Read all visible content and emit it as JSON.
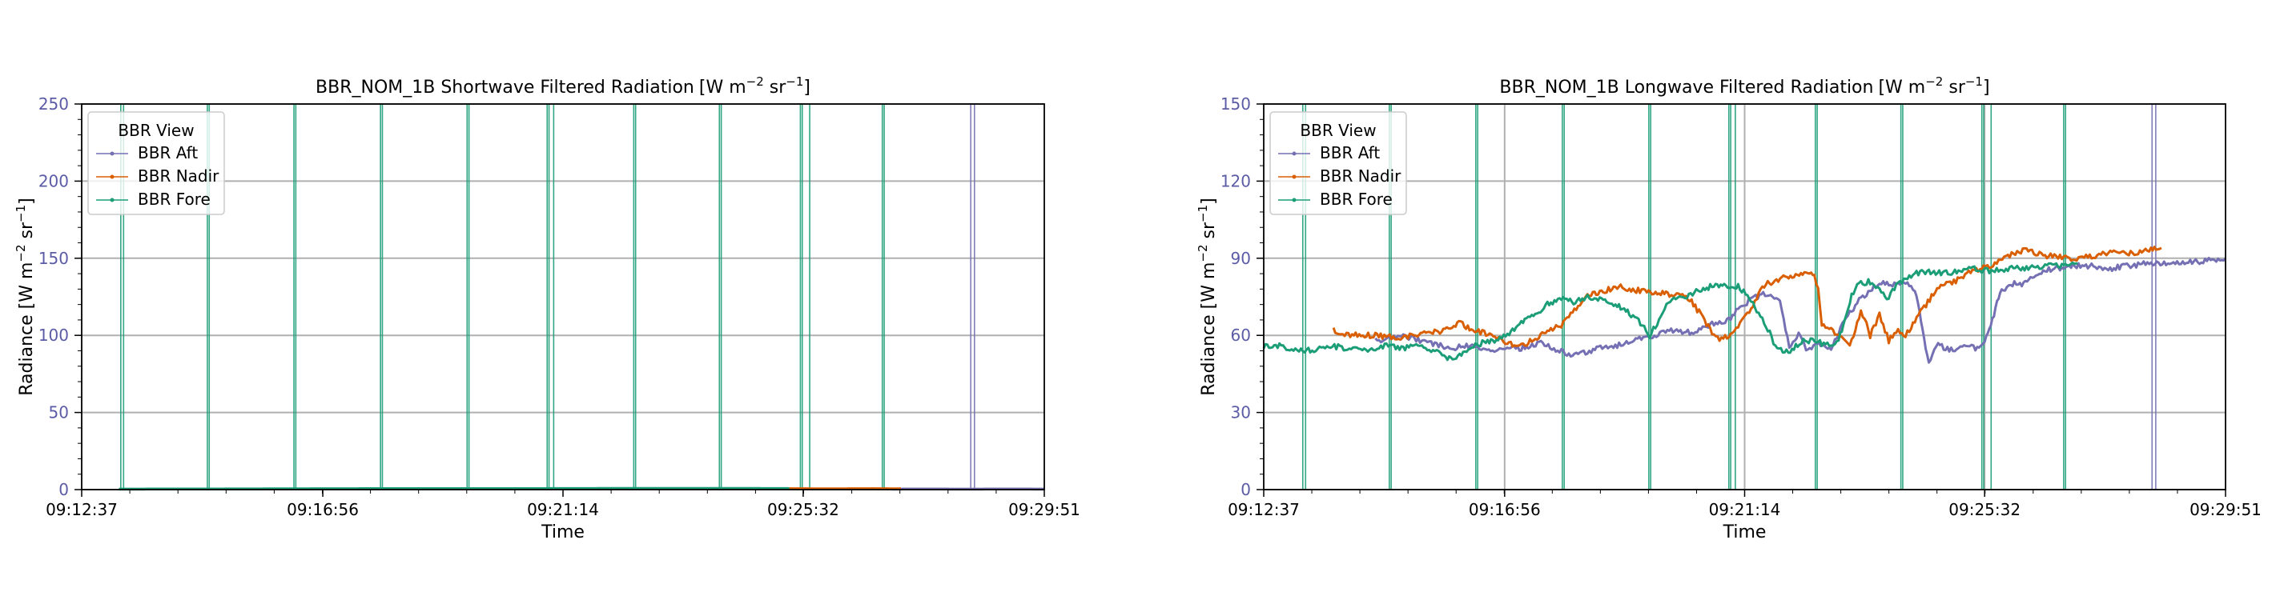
{
  "chart_data": [
    {
      "type": "line",
      "title": "BBR_NOM_1B Shortwave Filtered Radiation",
      "title_units": "[W m",
      "title_exp1": "−2",
      "title_mid": " sr",
      "title_exp2": "−1",
      "title_end": "]",
      "xlabel": "Time",
      "ylabel": "Radiance [W m",
      "ylabel_exp1": "−2",
      "ylabel_mid": " sr",
      "ylabel_exp2": "−1",
      "ylabel_end": "]",
      "x_ticks": [
        "09:12:37",
        "09:16:56",
        "09:21:14",
        "09:25:32",
        "09:29:51"
      ],
      "x_tick_seconds": [
        0,
        259,
        517,
        775,
        1034
      ],
      "ylim": [
        0,
        250
      ],
      "y_ticks": [
        0,
        50,
        100,
        150,
        200,
        250
      ],
      "grid": true,
      "legend_title": "BBR View",
      "legend_position": "top-left",
      "series": [
        {
          "name": "BBR Aft",
          "color": "#7570b3",
          "points": [
            [
              870,
              0.3
            ],
            [
              900,
              0.4
            ],
            [
              950,
              0.3
            ],
            [
              1000,
              0.4
            ],
            [
              1034,
              0.3
            ]
          ]
        },
        {
          "name": "BBR Nadir",
          "color": "#d95f02",
          "points": [
            [
              760,
              0.6
            ],
            [
              800,
              0.5
            ],
            [
              850,
              0.6
            ],
            [
              880,
              0.5
            ]
          ]
        },
        {
          "name": "BBR Fore",
          "color": "#1b9e77",
          "points": [
            [
              40,
              0.3
            ],
            [
              120,
              0.4
            ],
            [
              200,
              0.5
            ],
            [
              300,
              0.6
            ],
            [
              400,
              0.6
            ],
            [
              500,
              0.7
            ],
            [
              600,
              0.8
            ],
            [
              700,
              0.8
            ],
            [
              760,
              0.7
            ]
          ]
        }
      ],
      "spikes": {
        "Fore": [
          42,
          45,
          135,
          137,
          228,
          230,
          321,
          323,
          414,
          416,
          500,
          502,
          507,
          593,
          595,
          685,
          687,
          772,
          774,
          782,
          860,
          862
        ],
        "Aft": [
          955,
          959
        ]
      }
    },
    {
      "type": "line",
      "title": "BBR_NOM_1B Longwave Filtered Radiation",
      "title_units": "[W m",
      "title_exp1": "−2",
      "title_mid": " sr",
      "title_exp2": "−1",
      "title_end": "]",
      "xlabel": "Time",
      "ylabel": "Radiance [W m",
      "ylabel_exp1": "−2",
      "ylabel_mid": " sr",
      "ylabel_exp2": "−1",
      "ylabel_end": "]",
      "x_ticks": [
        "09:12:37",
        "09:16:56",
        "09:21:14",
        "09:25:32",
        "09:29:51"
      ],
      "x_tick_seconds": [
        0,
        259,
        517,
        775,
        1034
      ],
      "ylim": [
        0,
        150
      ],
      "y_ticks": [
        0,
        30,
        60,
        90,
        120,
        150
      ],
      "grid": true,
      "legend_title": "BBR View",
      "legend_position": "top-left",
      "series": [
        {
          "name": "BBR Aft",
          "color": "#7570b3",
          "points": [
            [
              120,
              58
            ],
            [
              150,
              60
            ],
            [
              180,
              57
            ],
            [
              200,
              55
            ],
            [
              220,
              56
            ],
            [
              250,
              54
            ],
            [
              275,
              55
            ],
            [
              300,
              57
            ],
            [
              330,
              52
            ],
            [
              360,
              55
            ],
            [
              380,
              56
            ],
            [
              400,
              58
            ],
            [
              420,
              60
            ],
            [
              440,
              62
            ],
            [
              460,
              61
            ],
            [
              480,
              64
            ],
            [
              500,
              66
            ],
            [
              510,
              70
            ],
            [
              525,
              74
            ],
            [
              535,
              76
            ],
            [
              545,
              75
            ],
            [
              555,
              73
            ],
            [
              565,
              55
            ],
            [
              575,
              60
            ],
            [
              585,
              54
            ],
            [
              595,
              57
            ],
            [
              610,
              55
            ],
            [
              620,
              63
            ],
            [
              640,
              74
            ],
            [
              660,
              80
            ],
            [
              680,
              80
            ],
            [
              690,
              81
            ],
            [
              700,
              78
            ],
            [
              705,
              70
            ],
            [
              710,
              58
            ],
            [
              715,
              50
            ],
            [
              725,
              56
            ],
            [
              735,
              55
            ],
            [
              745,
              54
            ],
            [
              755,
              56
            ],
            [
              765,
              55
            ],
            [
              775,
              58
            ],
            [
              780,
              62
            ],
            [
              785,
              68
            ],
            [
              790,
              75
            ],
            [
              795,
              78
            ],
            [
              805,
              80
            ],
            [
              815,
              80
            ],
            [
              830,
              84
            ],
            [
              850,
              86
            ],
            [
              870,
              87
            ],
            [
              890,
              87
            ],
            [
              910,
              86
            ],
            [
              930,
              87
            ],
            [
              950,
              88
            ],
            [
              980,
              88
            ],
            [
              1010,
              89
            ],
            [
              1034,
              90
            ]
          ]
        },
        {
          "name": "BBR Nadir",
          "color": "#d95f02",
          "points": [
            [
              75,
              62
            ],
            [
              95,
              60
            ],
            [
              120,
              60
            ],
            [
              145,
              59
            ],
            [
              165,
              60
            ],
            [
              180,
              61
            ],
            [
              195,
              62
            ],
            [
              210,
              65
            ],
            [
              225,
              62
            ],
            [
              245,
              60
            ],
            [
              260,
              57
            ],
            [
              275,
              56
            ],
            [
              290,
              58
            ],
            [
              305,
              62
            ],
            [
              320,
              64
            ],
            [
              340,
              72
            ],
            [
              350,
              76
            ],
            [
              365,
              77
            ],
            [
              380,
              79
            ],
            [
              395,
              78
            ],
            [
              410,
              77
            ],
            [
              425,
              77
            ],
            [
              440,
              75
            ],
            [
              450,
              76
            ],
            [
              460,
              73
            ],
            [
              470,
              68
            ],
            [
              480,
              62
            ],
            [
              490,
              58
            ],
            [
              500,
              60
            ],
            [
              510,
              64
            ],
            [
              520,
              68
            ],
            [
              530,
              75
            ],
            [
              540,
              80
            ],
            [
              555,
              82
            ],
            [
              570,
              83
            ],
            [
              585,
              84
            ],
            [
              592,
              84
            ],
            [
              596,
              78
            ],
            [
              600,
              64
            ],
            [
              608,
              63
            ],
            [
              618,
              60
            ],
            [
              630,
              55
            ],
            [
              642,
              70
            ],
            [
              652,
              60
            ],
            [
              662,
              68
            ],
            [
              672,
              58
            ],
            [
              680,
              62
            ],
            [
              690,
              60
            ],
            [
              700,
              66
            ],
            [
              712,
              72
            ],
            [
              724,
              78
            ],
            [
              736,
              80
            ],
            [
              748,
              82
            ],
            [
              760,
              85
            ],
            [
              770,
              86
            ],
            [
              778,
              87
            ],
            [
              788,
              88
            ],
            [
              798,
              91
            ],
            [
              808,
              92
            ],
            [
              818,
              93
            ],
            [
              828,
              92
            ],
            [
              838,
              91
            ],
            [
              850,
              91
            ],
            [
              870,
              90
            ],
            [
              890,
              91
            ],
            [
              910,
              92
            ],
            [
              930,
              92
            ],
            [
              950,
              93
            ],
            [
              965,
              94
            ]
          ]
        },
        {
          "name": "BBR Fore",
          "color": "#1b9e77",
          "points": [
            [
              0,
              56
            ],
            [
              15,
              56
            ],
            [
              30,
              55
            ],
            [
              50,
              54
            ],
            [
              70,
              56
            ],
            [
              90,
              55
            ],
            [
              110,
              54
            ],
            [
              130,
              56
            ],
            [
              150,
              55
            ],
            [
              170,
              56
            ],
            [
              190,
              53
            ],
            [
              205,
              50
            ],
            [
              220,
              55
            ],
            [
              235,
              57
            ],
            [
              250,
              58
            ],
            [
              262,
              60
            ],
            [
              275,
              64
            ],
            [
              290,
              68
            ],
            [
              305,
              72
            ],
            [
              320,
              74
            ],
            [
              335,
              73
            ],
            [
              350,
              75
            ],
            [
              365,
              74
            ],
            [
              380,
              72
            ],
            [
              395,
              68
            ],
            [
              405,
              65
            ],
            [
              415,
              60
            ],
            [
              425,
              66
            ],
            [
              435,
              73
            ],
            [
              445,
              74
            ],
            [
              455,
              75
            ],
            [
              465,
              77
            ],
            [
              480,
              79
            ],
            [
              495,
              79
            ],
            [
              510,
              79
            ],
            [
              520,
              76
            ],
            [
              530,
              70
            ],
            [
              540,
              64
            ],
            [
              550,
              56
            ],
            [
              560,
              53
            ],
            [
              570,
              55
            ],
            [
              580,
              58
            ],
            [
              590,
              58
            ],
            [
              600,
              57
            ],
            [
              610,
              56
            ],
            [
              618,
              58
            ],
            [
              625,
              66
            ],
            [
              632,
              76
            ],
            [
              640,
              80
            ],
            [
              650,
              81
            ],
            [
              660,
              78
            ],
            [
              670,
              74
            ],
            [
              680,
              79
            ],
            [
              690,
              82
            ],
            [
              700,
              84
            ],
            [
              715,
              85
            ],
            [
              730,
              84
            ],
            [
              745,
              85
            ],
            [
              760,
              86
            ],
            [
              780,
              85
            ],
            [
              800,
              86
            ],
            [
              820,
              86
            ],
            [
              840,
              87
            ],
            [
              860,
              87
            ],
            [
              875,
              88
            ]
          ]
        }
      ],
      "spikes": {
        "Fore": [
          42,
          45,
          135,
          137,
          228,
          230,
          321,
          323,
          414,
          416,
          500,
          502,
          507,
          593,
          595,
          685,
          687,
          772,
          774,
          782,
          860,
          862
        ],
        "Aft": [
          955,
          959
        ]
      }
    }
  ]
}
